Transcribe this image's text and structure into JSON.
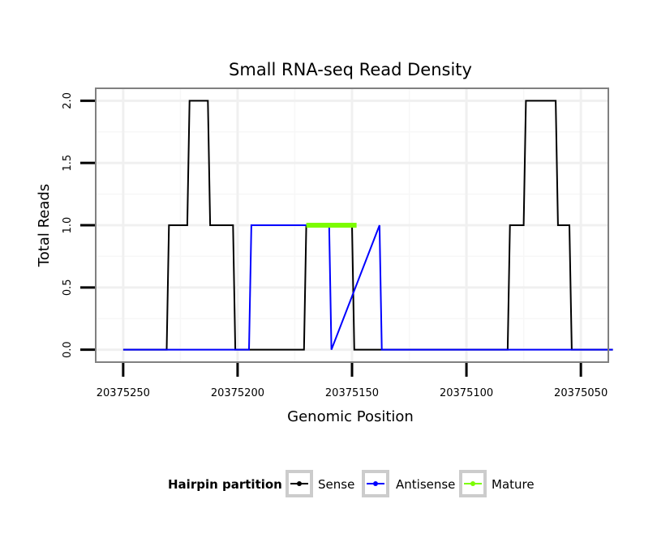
{
  "chart_data": {
    "type": "line",
    "title": "Small RNA-seq Read Density",
    "xlabel": "Genomic Position",
    "ylabel": "Total Reads",
    "xlim": [
      20375262,
      20375038
    ],
    "ylim": [
      -0.1,
      2.1
    ],
    "x_reversed": true,
    "x_ticks": [
      20375250,
      20375200,
      20375150,
      20375100,
      20375050
    ],
    "x_tick_labels": [
      "20375250",
      "20375200",
      "20375150",
      "20375100",
      "20375050"
    ],
    "y_ticks": [
      0.0,
      0.5,
      1.0,
      1.5,
      2.0
    ],
    "y_tick_labels": [
      "0.0",
      "0.5",
      "1.0",
      "1.5",
      "2.0"
    ],
    "grid": true,
    "legend": {
      "title": "Hairpin partition",
      "position": "bottom"
    },
    "series": [
      {
        "name": "Sense",
        "color": "#000000",
        "x": [
          20375250,
          20375231,
          20375230,
          20375222,
          20375221,
          20375213,
          20375212,
          20375202,
          20375201,
          20375171,
          20375170,
          20375150,
          20375149,
          20375082,
          20375081,
          20375075,
          20375074,
          20375061,
          20375060,
          20375055,
          20375054,
          20375036
        ],
        "y": [
          0,
          0,
          1,
          1,
          2,
          2,
          1,
          1,
          0,
          0,
          1,
          1,
          0,
          0,
          1,
          1,
          2,
          2,
          1,
          1,
          0,
          0
        ]
      },
      {
        "name": "Antisense",
        "color": "#0000ff",
        "x": [
          20375250,
          20375195,
          20375194,
          20375160,
          20375159,
          20375138,
          20375137,
          20375036
        ],
        "y": [
          0,
          0,
          1,
          1,
          0,
          1,
          0,
          0
        ]
      },
      {
        "name": "Mature",
        "color": "#7cfc00",
        "x": [
          20375170,
          20375148
        ],
        "y": [
          1,
          1
        ]
      }
    ]
  }
}
